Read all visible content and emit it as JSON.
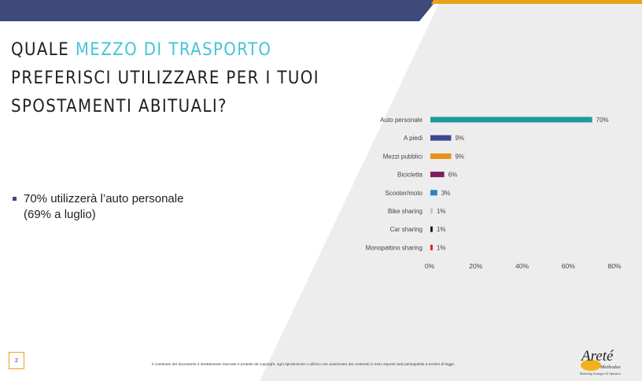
{
  "title": {
    "before": "QUALE ",
    "highlight": "MEZZO DI TRASPORTO",
    "after": " PREFERISCI UTILIZZARE PER I TUOI SPOSTAMENTI ABITUALI?"
  },
  "bullet": {
    "line1": "70% utilizzerà l’auto personale",
    "line2": "(69% a luglio)"
  },
  "chart_data": {
    "type": "bar",
    "orientation": "horizontal",
    "categories": [
      "Auto personale",
      "A piedi",
      "Mezzi pubblici",
      "Bicicletta",
      "Scooter/moto",
      "Bike sharing",
      "Car sharing",
      "Monopattino sharing"
    ],
    "values": [
      70,
      9,
      9,
      6,
      3,
      1,
      1,
      1
    ],
    "value_labels": [
      "70%",
      "9%",
      "9%",
      "6%",
      "3%",
      "1%",
      "1%",
      "1%"
    ],
    "colors": [
      "#1f9a9a",
      "#3e4a8c",
      "#e8901a",
      "#7a1f5a",
      "#2f80c8",
      "#c8c8c8",
      "#1a1a1a",
      "#e02020"
    ],
    "xlim": [
      0,
      80
    ],
    "xticks": [
      "0%",
      "20%",
      "40%",
      "60%",
      "80%"
    ],
    "grid": false
  },
  "footer": {
    "page_number": "2",
    "disclaimer": "Il contenuto del documento è strettamente riservato e protetto da copyright, ogni riproduzione o utilizzo non autorizzato dei contenuti in esso esposti sarà perseguibile a termini di legge.",
    "logo_text": "Areté",
    "logo_sub": "Methodos",
    "logo_tagline": "Marketing Strategico & Operativo"
  },
  "colors": {
    "accent_navy": "#3e4a7a",
    "accent_orange": "#e8a21a",
    "highlight_cyan": "#46c4d8",
    "panel_gray": "#ededed"
  }
}
